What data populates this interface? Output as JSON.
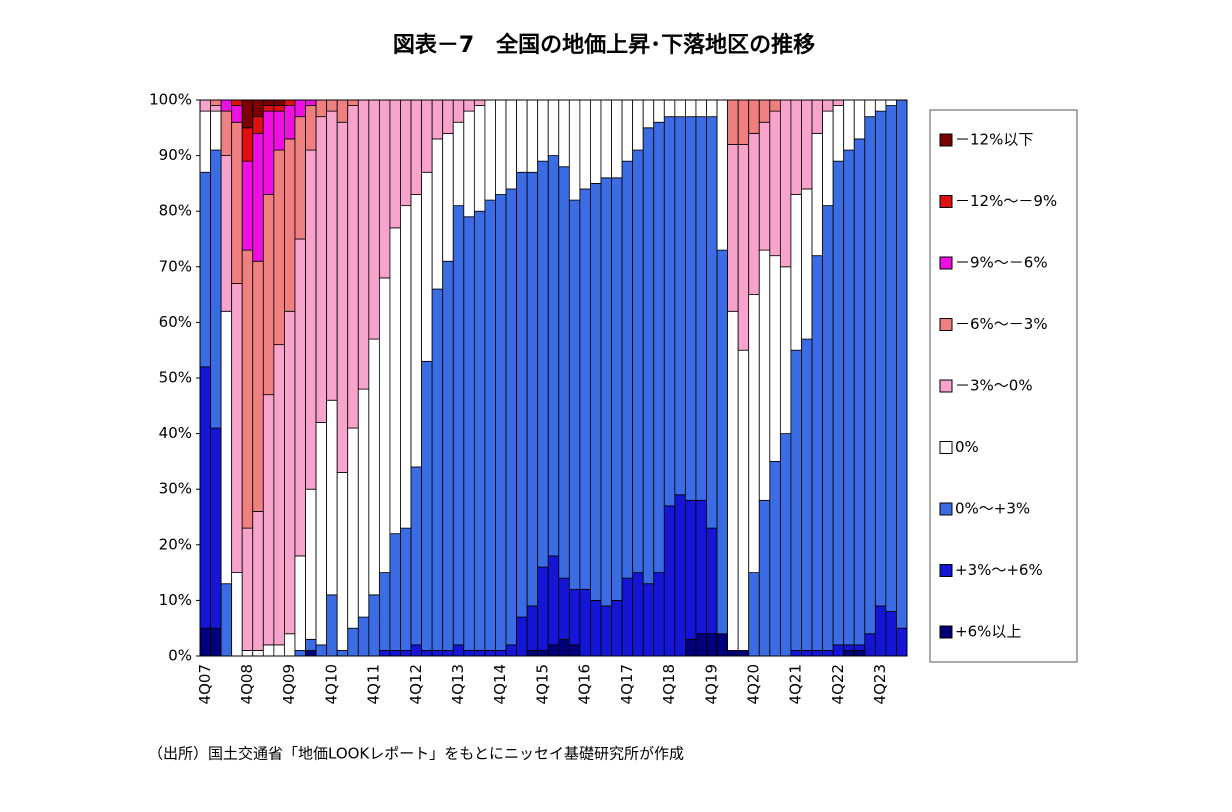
{
  "chart_data": {
    "type": "stacked_bar",
    "title": "図表－7　全国の地価上昇･下落地区の推移",
    "footnote": "（出所）国土交通省「地価LOOKレポート」をもとにニッセイ基礎研究所が作成",
    "categories": [
      "4Q07",
      null,
      null,
      null,
      "4Q08",
      null,
      null,
      null,
      "4Q09",
      null,
      null,
      null,
      "4Q10",
      null,
      null,
      null,
      "4Q11",
      null,
      null,
      null,
      "4Q12",
      null,
      null,
      null,
      "4Q13",
      null,
      null,
      null,
      "4Q14",
      null,
      null,
      null,
      "4Q15",
      null,
      null,
      null,
      "4Q16",
      null,
      null,
      null,
      "4Q17",
      null,
      null,
      null,
      "4Q18",
      null,
      null,
      null,
      "4Q19",
      null,
      null,
      null,
      "4Q20",
      null,
      null,
      null,
      "4Q21",
      null,
      null,
      null,
      "4Q22",
      null,
      null,
      null,
      "4Q23",
      null,
      null
    ],
    "ylim": [
      0,
      100
    ],
    "yticks": [
      {
        "value": 0,
        "label": "0%"
      },
      {
        "value": 10,
        "label": "10%"
      },
      {
        "value": 20,
        "label": "20%"
      },
      {
        "value": 30,
        "label": "30%"
      },
      {
        "value": 40,
        "label": "40%"
      },
      {
        "value": 50,
        "label": "50%"
      },
      {
        "value": 60,
        "label": "60%"
      },
      {
        "value": 70,
        "label": "70%"
      },
      {
        "value": 80,
        "label": "80%"
      },
      {
        "value": 90,
        "label": "90%"
      },
      {
        "value": 100,
        "label": "100%"
      }
    ],
    "grid": false,
    "legend": "right",
    "series": [
      {
        "name": "－12%以下",
        "color": "#7a0000",
        "values": [
          0,
          0,
          0,
          0,
          5,
          3,
          1,
          1,
          0,
          0,
          0,
          0,
          0,
          0,
          0,
          0,
          0,
          0,
          0,
          0,
          0,
          0,
          0,
          0,
          0,
          0,
          0,
          0,
          0,
          0,
          0,
          0,
          0,
          0,
          0,
          0,
          0,
          0,
          0,
          0,
          0,
          0,
          0,
          0,
          0,
          0,
          0,
          0,
          0,
          0,
          0,
          0,
          0,
          0,
          0,
          0,
          0,
          0,
          0,
          0,
          0,
          0,
          0,
          0,
          0,
          0,
          0
        ]
      },
      {
        "name": "－12%～－9%",
        "color": "#e01010",
        "values": [
          0,
          0,
          0,
          1,
          6,
          3,
          1,
          1,
          1,
          0,
          0,
          0,
          0,
          0,
          0,
          0,
          0,
          0,
          0,
          0,
          0,
          0,
          0,
          0,
          0,
          0,
          0,
          0,
          0,
          0,
          0,
          0,
          0,
          0,
          0,
          0,
          0,
          0,
          0,
          0,
          0,
          0,
          0,
          0,
          0,
          0,
          0,
          0,
          0,
          0,
          0,
          0,
          0,
          0,
          0,
          0,
          0,
          0,
          0,
          0,
          0,
          0,
          0,
          0,
          0,
          0,
          0
        ]
      },
      {
        "name": "－9%～－6%",
        "color": "#ee10e0",
        "values": [
          0,
          0,
          2,
          3,
          16,
          23,
          15,
          7,
          6,
          3,
          1,
          0,
          0,
          0,
          0,
          0,
          0,
          0,
          0,
          0,
          0,
          0,
          0,
          0,
          0,
          0,
          0,
          0,
          0,
          0,
          0,
          0,
          0,
          0,
          0,
          0,
          0,
          0,
          0,
          0,
          0,
          0,
          0,
          0,
          0,
          0,
          0,
          0,
          0,
          0,
          0,
          0,
          0,
          0,
          0,
          0,
          0,
          0,
          0,
          0,
          0,
          0,
          0,
          0,
          0,
          0,
          0
        ]
      },
      {
        "name": "－6%～－3%",
        "color": "#f08080",
        "values": [
          0,
          1,
          8,
          29,
          50,
          45,
          36,
          35,
          31,
          22,
          8,
          3,
          2,
          4,
          1,
          0,
          0,
          0,
          0,
          0,
          0,
          0,
          0,
          0,
          0,
          0,
          0,
          0,
          0,
          0,
          0,
          0,
          0,
          0,
          0,
          0,
          0,
          0,
          0,
          0,
          0,
          0,
          0,
          0,
          0,
          0,
          0,
          0,
          0,
          0,
          8,
          8,
          6,
          4,
          2,
          0,
          0,
          0,
          0,
          0,
          0,
          0,
          0,
          0,
          0,
          0,
          0
        ]
      },
      {
        "name": "－3%～0%",
        "color": "#f7a3cb",
        "values": [
          2,
          1,
          28,
          52,
          22,
          25,
          45,
          54,
          58,
          57,
          61,
          55,
          52,
          63,
          58,
          52,
          43,
          32,
          23,
          19,
          17,
          13,
          7,
          6,
          4,
          2,
          1,
          0,
          0,
          0,
          0,
          0,
          0,
          0,
          0,
          0,
          0,
          0,
          0,
          0,
          0,
          0,
          0,
          0,
          0,
          0,
          0,
          0,
          0,
          0,
          30,
          37,
          29,
          23,
          26,
          30,
          17,
          16,
          6,
          2,
          1,
          0,
          0,
          0,
          0,
          0,
          0
        ]
      },
      {
        "name": "0%",
        "color": "#ffffff",
        "values": [
          11,
          7,
          49,
          15,
          1,
          1,
          2,
          2,
          4,
          17,
          27,
          40,
          35,
          32,
          36,
          41,
          46,
          53,
          55,
          58,
          49,
          34,
          27,
          23,
          15,
          19,
          19,
          18,
          17,
          16,
          13,
          13,
          11,
          10,
          12,
          18,
          16,
          15,
          14,
          14,
          11,
          9,
          5,
          4,
          3,
          3,
          3,
          3,
          3,
          27,
          61,
          54,
          50,
          45,
          37,
          30,
          28,
          27,
          22,
          17,
          10,
          9,
          7,
          3,
          2,
          1,
          0
        ]
      },
      {
        "name": "0%～+3%",
        "color": "#3b6ce3",
        "values": [
          35,
          50,
          13,
          0,
          0,
          0,
          0,
          0,
          0,
          1,
          2,
          2,
          11,
          1,
          5,
          7,
          11,
          14,
          21,
          22,
          32,
          52,
          65,
          70,
          79,
          78,
          79,
          81,
          82,
          82,
          80,
          78,
          73,
          72,
          74,
          70,
          72,
          75,
          77,
          76,
          75,
          76,
          82,
          81,
          70,
          68,
          69,
          69,
          74,
          69,
          0,
          0,
          15,
          28,
          35,
          40,
          54,
          56,
          71,
          80,
          87,
          89,
          91,
          93,
          89,
          91,
          95
        ]
      },
      {
        "name": "+3%～+6%",
        "color": "#1515d5",
        "values": [
          47,
          36,
          0,
          0,
          0,
          0,
          0,
          0,
          0,
          0,
          0,
          0,
          0,
          0,
          0,
          0,
          0,
          1,
          1,
          1,
          2,
          1,
          1,
          1,
          2,
          1,
          1,
          1,
          1,
          2,
          7,
          8,
          15,
          16,
          11,
          10,
          12,
          10,
          9,
          10,
          14,
          15,
          13,
          15,
          27,
          29,
          25,
          24,
          19,
          0,
          0,
          0,
          0,
          0,
          0,
          0,
          1,
          1,
          1,
          1,
          2,
          1,
          1,
          4,
          9,
          8,
          5
        ]
      },
      {
        "name": "+6%以上",
        "color": "#00007a",
        "values": [
          5,
          5,
          0,
          0,
          0,
          0,
          0,
          0,
          0,
          0,
          1,
          0,
          0,
          0,
          0,
          0,
          0,
          0,
          0,
          0,
          0,
          0,
          0,
          0,
          0,
          0,
          0,
          0,
          0,
          0,
          0,
          1,
          1,
          2,
          3,
          2,
          0,
          0,
          0,
          0,
          0,
          0,
          0,
          0,
          0,
          0,
          3,
          4,
          4,
          4,
          1,
          1,
          0,
          0,
          0,
          0,
          0,
          0,
          0,
          0,
          0,
          1,
          1,
          0,
          0,
          0,
          0
        ]
      }
    ]
  }
}
